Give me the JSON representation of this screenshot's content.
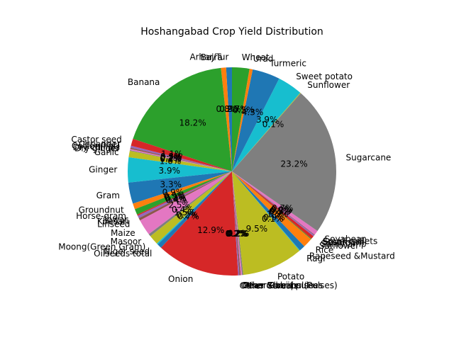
{
  "chart_data": {
    "type": "pie",
    "title": "Hoshangabad Crop Yield Distribution",
    "start_angle_deg": 90,
    "direction": "counterclockwise",
    "label_format": "percent_1dp",
    "slices": [
      {
        "label": "Arhar/Tur",
        "value": 0.9,
        "color": "#1f77b4"
      },
      {
        "label": "Bajra",
        "value": 0.8,
        "color": "#ff7f0e"
      },
      {
        "label": "Banana",
        "value": 18.3,
        "color": "#2ca02c"
      },
      {
        "label": "Castor seed",
        "value": 1.1,
        "color": "#d62728"
      },
      {
        "label": "Coriander",
        "value": 0.3,
        "color": "#9467bd"
      },
      {
        "label": "Cotton(lint)",
        "value": 0.2,
        "color": "#8c564b"
      },
      {
        "label": "Dry chillies",
        "value": 0.2,
        "color": "#e377c2"
      },
      {
        "label": "Dry ginger",
        "value": 0.1,
        "color": "#7f7f7f"
      },
      {
        "label": "Garlic",
        "value": 1.0,
        "color": "#bcbd22"
      },
      {
        "label": "Ginger",
        "value": 3.9,
        "color": "#17becf"
      },
      {
        "label": "Gram",
        "value": 3.3,
        "color": "#1f77b4"
      },
      {
        "label": "Groundnut",
        "value": 0.9,
        "color": "#ff7f0e"
      },
      {
        "label": "Horse-gram",
        "value": 0.9,
        "color": "#2ca02c"
      },
      {
        "label": "Jowar",
        "value": 0.2,
        "color": "#d62728"
      },
      {
        "label": "Khesari",
        "value": 0.4,
        "color": "#9467bd"
      },
      {
        "label": "Linseed",
        "value": 0.4,
        "color": "#8c564b"
      },
      {
        "label": "Maize",
        "value": 2.5,
        "color": "#e377c2"
      },
      {
        "label": "Masoor",
        "value": 0.4,
        "color": "#7f7f7f"
      },
      {
        "label": "Moong(Green Gram)",
        "value": 1.5,
        "color": "#bcbd22"
      },
      {
        "label": "Niger seed",
        "value": 0.2,
        "color": "#17becf"
      },
      {
        "label": "Oilseeds total",
        "value": 0.7,
        "color": "#1f77b4"
      },
      {
        "label": "Onion",
        "value": 12.9,
        "color": "#d62728"
      },
      {
        "label": "Other Cereals",
        "value": 0.2,
        "color": "#9467bd"
      },
      {
        "label": "Other Kharif pulses",
        "value": 0.2,
        "color": "#8c564b"
      },
      {
        "label": "Other Rabi pulses",
        "value": 0.2,
        "color": "#e377c2"
      },
      {
        "label": "Peas & beans (Pulses)",
        "value": 0.2,
        "color": "#7f7f7f"
      },
      {
        "label": "Potato",
        "value": 9.5,
        "color": "#bcbd22"
      },
      {
        "label": "Ragi",
        "value": 0.1,
        "color": "#17becf"
      },
      {
        "label": "Rapeseed &Mustard",
        "value": 0.9,
        "color": "#1f77b4"
      },
      {
        "label": "Rice",
        "value": 1.5,
        "color": "#ff7f0e"
      },
      {
        "label": "Safflower",
        "value": 0.1,
        "color": "#2ca02c"
      },
      {
        "label": "Sannhamp",
        "value": 0.5,
        "color": "#d62728"
      },
      {
        "label": "Sesamum",
        "value": 0.2,
        "color": "#9467bd"
      },
      {
        "label": "Small millets",
        "value": 0.1,
        "color": "#8c564b"
      },
      {
        "label": "Soyabean",
        "value": 0.7,
        "color": "#e377c2"
      },
      {
        "label": "Sugarcane",
        "value": 23.3,
        "color": "#7f7f7f"
      },
      {
        "label": "Sunflower",
        "value": 0.1,
        "color": "#bcbd22"
      },
      {
        "label": "Sweet potato",
        "value": 3.9,
        "color": "#17becf"
      },
      {
        "label": "Turmeric",
        "value": 4.3,
        "color": "#1f77b4"
      },
      {
        "label": "Urad",
        "value": 0.5,
        "color": "#ff7f0e"
      },
      {
        "label": "Wheat",
        "value": 2.7,
        "color": "#2ca02c"
      }
    ]
  }
}
